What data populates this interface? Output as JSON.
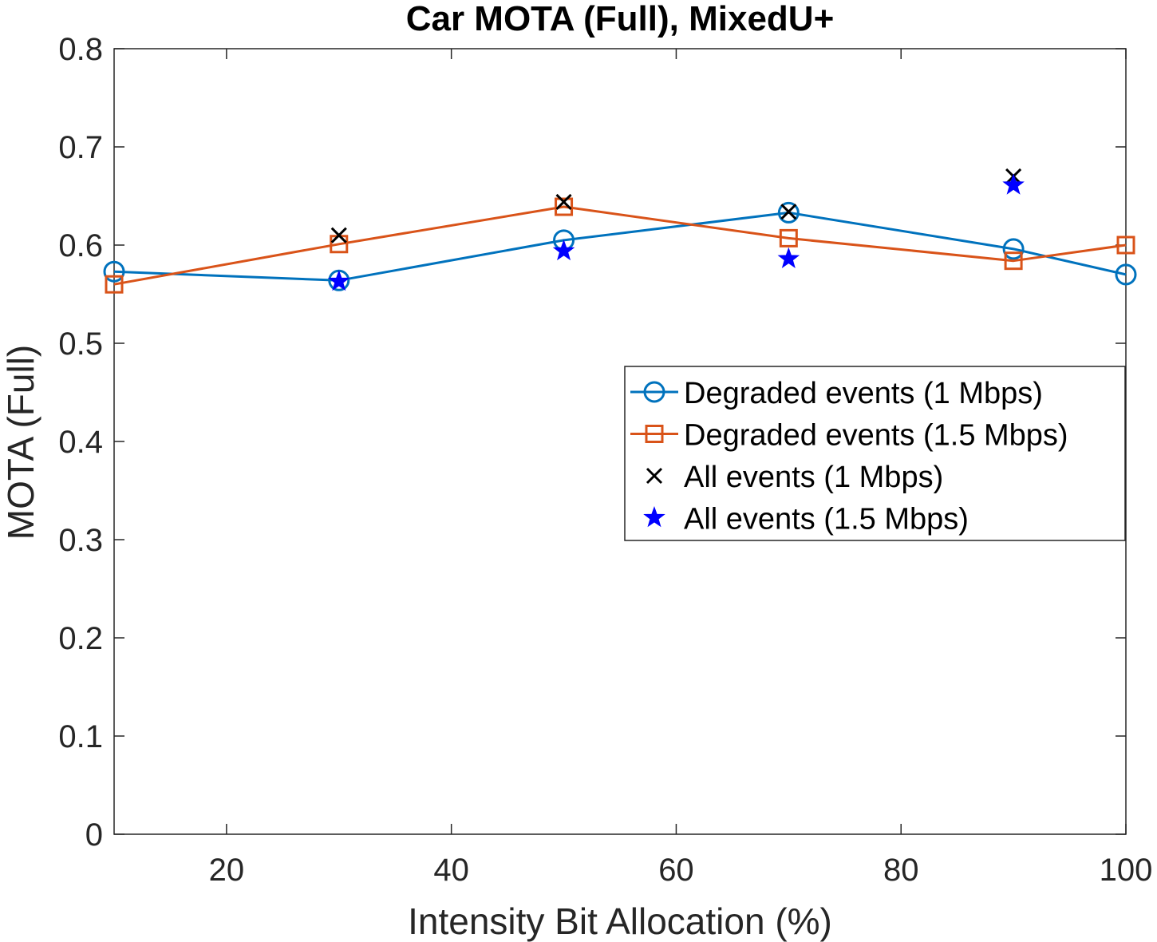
{
  "chart_data": {
    "type": "line",
    "title": "Car MOTA (Full), MixedU+",
    "xlabel": "Intensity Bit Allocation (%)",
    "ylabel": "MOTA (Full)",
    "xlim": [
      10,
      100
    ],
    "ylim": [
      0,
      0.8
    ],
    "xticks": [
      20,
      40,
      60,
      80,
      100
    ],
    "yticks": [
      0,
      0.1,
      0.2,
      0.3,
      0.4,
      0.5,
      0.6,
      0.7,
      0.8
    ],
    "xtick_labels": [
      "20",
      "40",
      "60",
      "80",
      "100"
    ],
    "ytick_labels": [
      "0",
      "0.1",
      "0.2",
      "0.3",
      "0.4",
      "0.5",
      "0.6",
      "0.7",
      "0.8"
    ],
    "grid": false,
    "legend_position": "right",
    "series": [
      {
        "name": "Degraded events (1 Mbps)",
        "style": "line-circle",
        "color": "#0072BD",
        "x": [
          10,
          30,
          50,
          70,
          90,
          100
        ],
        "y": [
          0.573,
          0.564,
          0.605,
          0.633,
          0.596,
          0.57
        ]
      },
      {
        "name": "Degraded events (1.5 Mbps)",
        "style": "line-square",
        "color": "#D95319",
        "x": [
          10,
          30,
          50,
          70,
          90,
          100
        ],
        "y": [
          0.56,
          0.601,
          0.639,
          0.607,
          0.584,
          0.6
        ]
      },
      {
        "name": "All events (1 Mbps)",
        "style": "marker-x",
        "color": "#000000",
        "x": [
          30,
          50,
          70,
          90
        ],
        "y": [
          0.61,
          0.644,
          0.634,
          0.67
        ]
      },
      {
        "name": "All events (1.5 Mbps)",
        "style": "marker-star",
        "color": "#0000FF",
        "x": [
          30,
          50,
          70,
          90
        ],
        "y": [
          0.563,
          0.594,
          0.586,
          0.661
        ]
      }
    ]
  }
}
